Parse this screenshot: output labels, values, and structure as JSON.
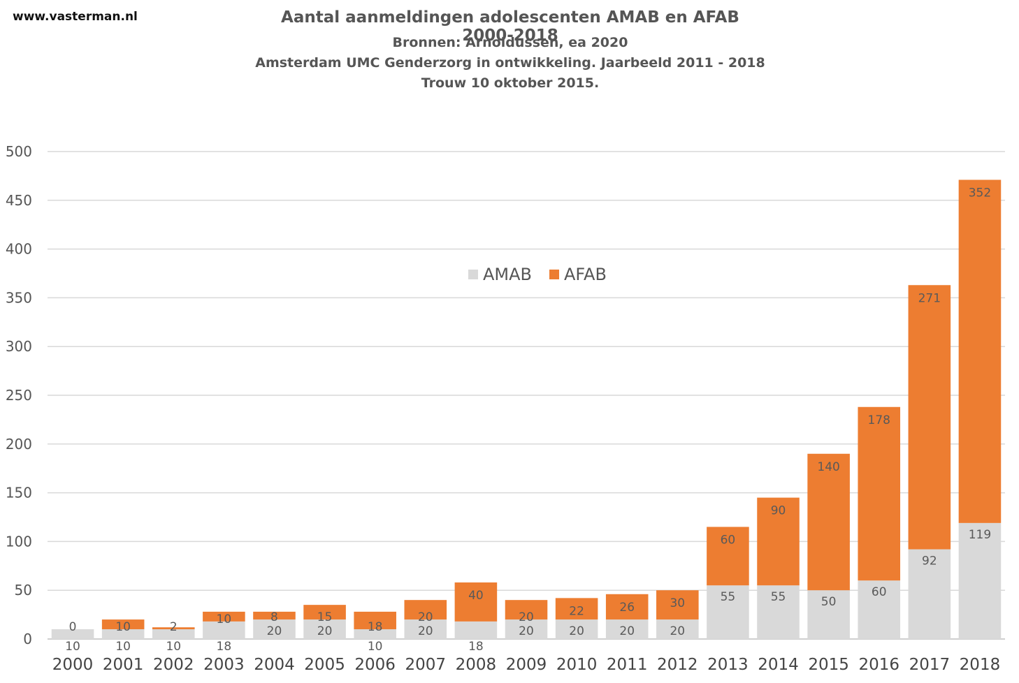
{
  "header": {
    "site": "www.vasterman.nl",
    "title": "Aantal aanmeldingen adolescenten AMAB en AFAB 2000-2018",
    "subtitle_1": "Bronnen:  Arnoldussen,  ea 2020",
    "subtitle_2": "Amsterdam UMC  Genderzorg in ontwikkeling. Jaarbeeld 2011 - 2018",
    "subtitle_3": "Trouw  10 oktober 2015."
  },
  "chart_data": {
    "type": "bar",
    "stacked": true,
    "categories": [
      "2000",
      "2001",
      "2002",
      "2003",
      "2004",
      "2005",
      "2006",
      "2007",
      "2008",
      "2009",
      "2010",
      "2011",
      "2012",
      "2013",
      "2014",
      "2015",
      "2016",
      "2017",
      "2018"
    ],
    "series": [
      {
        "name": "AMAB",
        "color": "#d9d9d9",
        "values": [
          10,
          10,
          10,
          18,
          20,
          20,
          10,
          20,
          18,
          20,
          20,
          20,
          20,
          55,
          55,
          50,
          60,
          92,
          119
        ]
      },
      {
        "name": "AFAB",
        "color": "#ed7d31",
        "values": [
          0,
          10,
          2,
          10,
          8,
          15,
          18,
          20,
          40,
          20,
          22,
          26,
          30,
          60,
          90,
          140,
          178,
          271,
          352
        ]
      }
    ],
    "ylim": [
      0,
      500
    ],
    "yticks": [
      0,
      50,
      100,
      150,
      200,
      250,
      300,
      350,
      400,
      450,
      500
    ],
    "grid": true,
    "legend_position": "top-center"
  }
}
